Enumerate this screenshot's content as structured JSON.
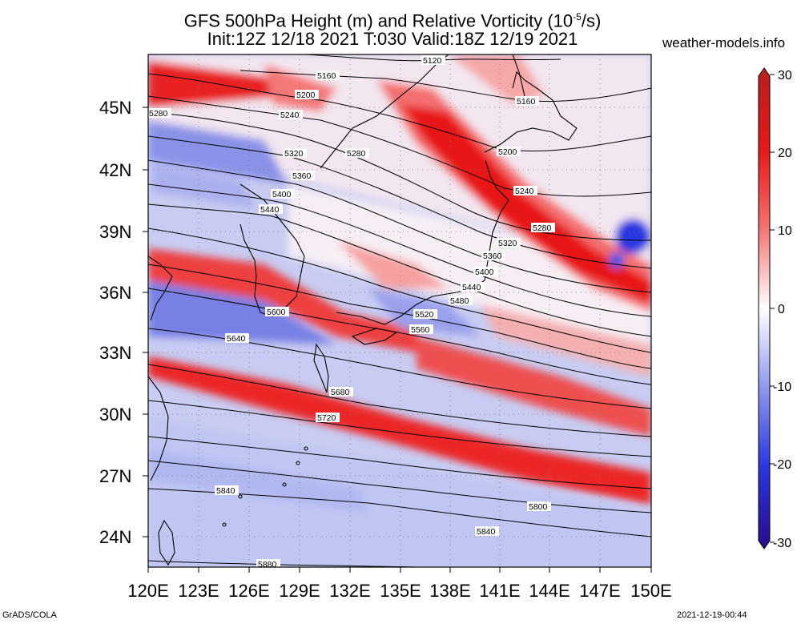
{
  "title_line1": "GFS 500hPa Height (m) and Relative Vorticity (10",
  "title_line1_sup": "-5",
  "title_line1_end": "/s)",
  "title_line2": "Init:12Z 12/18 2021 T:030 Valid:18Z 12/19 2021",
  "credit": "weather-models.info",
  "footer_left": "GrADS/COLA",
  "footer_right": "2021-12-19-00:44",
  "lat_labels": [
    "45N",
    "42N",
    "39N",
    "36N",
    "33N",
    "30N",
    "27N",
    "24N"
  ],
  "lon_labels": [
    "120E",
    "123E",
    "126E",
    "129E",
    "132E",
    "135E",
    "138E",
    "141E",
    "144E",
    "147E",
    "150E"
  ],
  "colorbar_labels": [
    "30",
    "20",
    "10",
    "0",
    "-10",
    "-20",
    "-30"
  ],
  "contour_labels": [
    "5120",
    "5160",
    "5200",
    "5240",
    "5280",
    "5320",
    "5360",
    "5400",
    "5440",
    "5480",
    "5520",
    "5560",
    "5600",
    "5640",
    "5680",
    "5720",
    "5800",
    "5840",
    "5880"
  ],
  "colors": {
    "strong_red": "#e81818",
    "mid_red": "#f47070",
    "light_red": "#fbc4c4",
    "white": "#f6f6ff",
    "light_blue": "#c4c8f4",
    "mid_blue": "#8c94ec",
    "strong_blue": "#2838e0",
    "contour": "#000000"
  }
}
